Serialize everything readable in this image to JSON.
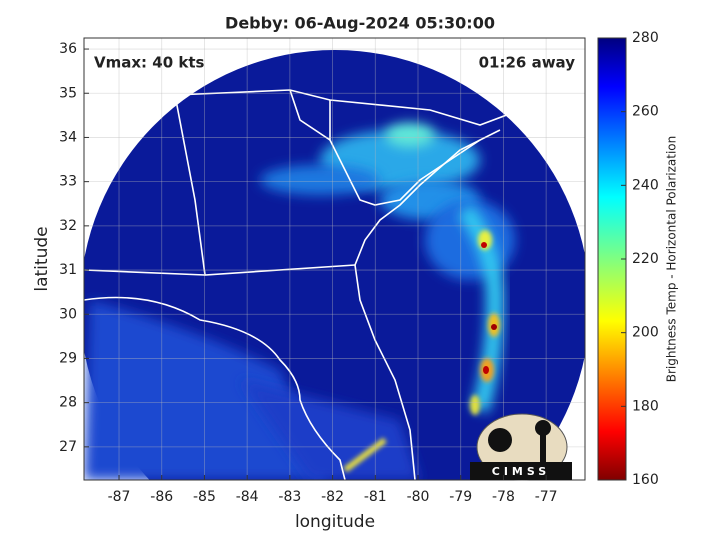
{
  "chart_data": {
    "type": "image",
    "title": "Debby: 06-Aug-2024 05:30:00",
    "annotations": [
      "Vmax: 40 kts",
      "01:26 away"
    ],
    "xlabel": "longitude",
    "ylabel": "latitude",
    "xlim": [
      -87.82,
      -76.09
    ],
    "xticks": [
      -87,
      -86,
      -85,
      -84,
      -83,
      -82,
      -81,
      -80,
      -79,
      -78,
      -77
    ],
    "ylim": [
      26.25,
      36.25
    ],
    "yticks": [
      27,
      28,
      29,
      30,
      31,
      32,
      33,
      34,
      35,
      36
    ],
    "grid": true,
    "colorbar": {
      "label": "Brightness Temp - Horizontal Polarization",
      "lim": [
        160,
        280
      ],
      "ticks": [
        160,
        180,
        200,
        220,
        240,
        260,
        280
      ],
      "colormap": "jet"
    },
    "logo": "CIMSS"
  }
}
